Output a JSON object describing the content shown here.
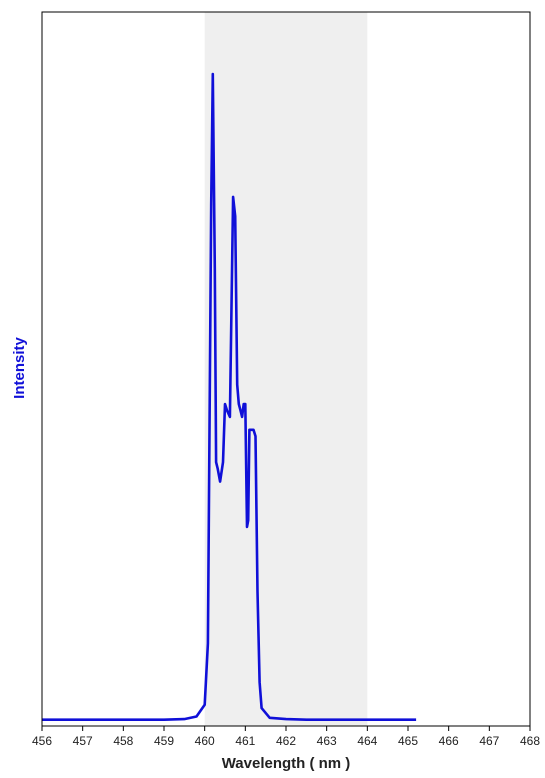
{
  "chart_data": {
    "type": "line",
    "xlabel": "Wavelength ( nm )",
    "ylabel": "Intensity",
    "xlim": [
      456,
      468
    ],
    "ylim": [
      0,
      100
    ],
    "x_ticks": [
      "456",
      "457",
      "458",
      "459",
      "460",
      "461",
      "462",
      "463",
      "464",
      "465",
      "466",
      "467",
      "468"
    ],
    "y_ticks_shown": false,
    "grid": false,
    "legend": "none",
    "highlight_band": {
      "x_start": 460,
      "x_end": 464,
      "color": "#efefef"
    },
    "series": [
      {
        "color": "#1010d8",
        "x": [
          456.0,
          456.5,
          457.0,
          457.5,
          458.0,
          458.5,
          459.0,
          459.5,
          459.8,
          460.0,
          460.08,
          460.12,
          460.16,
          460.2,
          460.22,
          460.25,
          460.28,
          460.32,
          460.38,
          460.45,
          460.5,
          460.55,
          460.62,
          460.7,
          460.75,
          460.8,
          460.84,
          460.88,
          460.92,
          460.96,
          461.0,
          461.04,
          461.07,
          461.1,
          461.14,
          461.2,
          461.25,
          461.3,
          461.35,
          461.4,
          461.6,
          462.0,
          462.5,
          463.0,
          463.5,
          464.0,
          464.5,
          465.2
        ],
        "y": [
          0.2,
          0.2,
          0.2,
          0.2,
          0.2,
          0.2,
          0.2,
          0.3,
          0.7,
          2.5,
          12,
          45,
          80,
          100,
          88,
          70,
          40,
          39,
          37,
          40,
          49,
          48,
          47,
          81,
          78,
          52,
          49,
          48,
          47,
          49,
          49,
          30,
          31,
          45,
          45,
          45,
          44,
          20,
          6,
          2,
          0.5,
          0.3,
          0.2,
          0.2,
          0.2,
          0.2,
          0.2,
          0.2
        ]
      }
    ]
  }
}
